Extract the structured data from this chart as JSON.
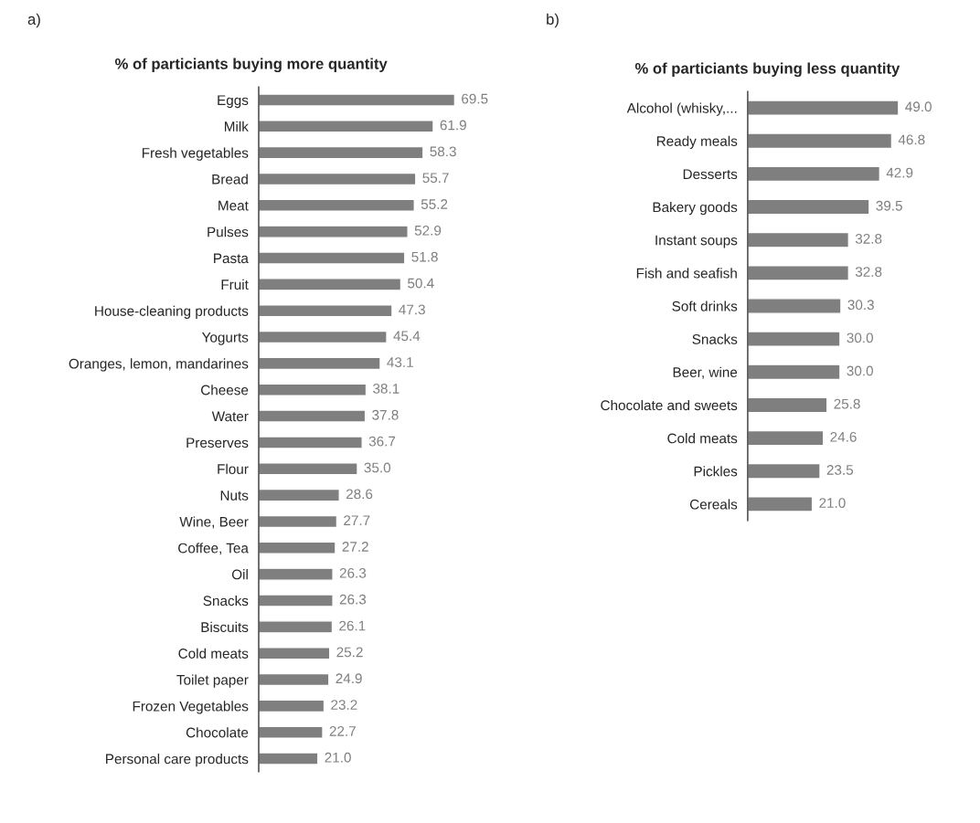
{
  "chart_data": [
    {
      "type": "bar",
      "orientation": "horizontal",
      "title": "% of particiants buying more quantity",
      "annotations": [
        "a)"
      ],
      "value_labels": [
        "69.5",
        "61.9",
        "58.3",
        "55.7",
        "55.2",
        "52.9",
        "51.8",
        "50.4",
        "47.3",
        "45.4",
        "43.1",
        "38.1",
        "37.8",
        "36.7",
        "35.0",
        "28.6",
        "27.7",
        "27.2",
        "26.3",
        "26.3",
        "26.1",
        "25.2",
        "24.9",
        "23.2",
        "22.7",
        "21.0"
      ],
      "tick_labels": "y",
      "grid": false,
      "legend": false,
      "color": "#7f7f7f",
      "categories": [
        "Eggs",
        "Milk",
        "Fresh vegetables",
        "Bread",
        "Meat",
        "Pulses",
        "Pasta",
        "Fruit",
        "House-cleaning products",
        "Yogurts",
        "Oranges, lemon, mandarines",
        "Cheese",
        "Water",
        "Preserves",
        "Flour",
        "Nuts",
        "Wine, Beer",
        "Coffee, Tea",
        "Oil",
        "Snacks",
        "Biscuits",
        "Cold meats",
        "Toilet paper",
        "Frozen Vegetables",
        "Chocolate",
        "Personal care products"
      ],
      "values": [
        69.5,
        61.9,
        58.3,
        55.7,
        55.2,
        52.9,
        51.8,
        50.4,
        47.3,
        45.4,
        43.1,
        38.1,
        37.8,
        36.7,
        35.0,
        28.6,
        27.7,
        27.2,
        26.3,
        26.3,
        26.1,
        25.2,
        24.9,
        23.2,
        22.7,
        21.0
      ]
    },
    {
      "type": "bar",
      "orientation": "horizontal",
      "title": "% of particiants buying less quantity",
      "annotations": [
        "b)"
      ],
      "value_labels": [
        "49.0",
        "46.8",
        "42.9",
        "39.5",
        "32.8",
        "32.8",
        "30.3",
        "30.0",
        "30.0",
        "25.8",
        "24.6",
        "23.5",
        "21.0"
      ],
      "tick_labels": "y",
      "grid": false,
      "legend": false,
      "color": "#7f7f7f",
      "categories": [
        "Alcohol (whisky,...",
        "Ready meals",
        "Desserts",
        "Bakery goods",
        "Instant soups",
        "Fish and seafish",
        "Soft drinks",
        "Snacks",
        "Beer, wine",
        "Chocolate and sweets",
        "Cold meats",
        "Pickles",
        "Cereals"
      ],
      "values": [
        49.0,
        46.8,
        42.9,
        39.5,
        32.8,
        32.8,
        30.3,
        30.0,
        30.0,
        25.8,
        24.6,
        23.5,
        21.0
      ]
    }
  ]
}
